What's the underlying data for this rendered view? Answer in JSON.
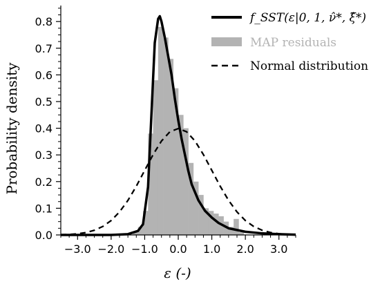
{
  "chart_data": {
    "type": "histogram+line",
    "xlabel": "ε (-)",
    "ylabel": "Probability density",
    "xlim": [
      -3.5,
      3.5
    ],
    "ylim": [
      0,
      0.86
    ],
    "x_ticks": [
      -3.0,
      -2.0,
      -1.0,
      0.0,
      1.0,
      2.0,
      3.0
    ],
    "y_ticks": [
      0.0,
      0.1,
      0.2,
      0.3,
      0.4,
      0.5,
      0.6,
      0.7,
      0.8
    ],
    "x_tick_labels": [
      "−3.0",
      "−2.0",
      "−1.0",
      "0.0",
      "1.0",
      "2.0",
      "3.0"
    ],
    "y_tick_labels": [
      "0.0",
      "0.1",
      "0.2",
      "0.3",
      "0.4",
      "0.5",
      "0.6",
      "0.7",
      "0.8"
    ],
    "legend": {
      "placement": "top-right",
      "entries": [
        {
          "label": "f_SST(ε|0, 1, ν̂*, ξ̂*)",
          "style": "solid"
        },
        {
          "label": "MAP residuals",
          "style": "patch"
        },
        {
          "label": "Normal distribution",
          "style": "dashed"
        }
      ]
    },
    "histogram": {
      "name": "MAP residuals",
      "color": "#b3b3b3",
      "bins": [
        {
          "x0": -1.35,
          "x1": -1.2,
          "value": 0.01
        },
        {
          "x0": -1.2,
          "x1": -1.05,
          "value": 0.03
        },
        {
          "x0": -1.05,
          "x1": -0.9,
          "value": 0.09
        },
        {
          "x0": -0.9,
          "x1": -0.75,
          "value": 0.38
        },
        {
          "x0": -0.75,
          "x1": -0.6,
          "value": 0.58
        },
        {
          "x0": -0.6,
          "x1": -0.45,
          "value": 0.78
        },
        {
          "x0": -0.45,
          "x1": -0.3,
          "value": 0.74
        },
        {
          "x0": -0.3,
          "x1": -0.15,
          "value": 0.66
        },
        {
          "x0": -0.15,
          "x1": 0.0,
          "value": 0.55
        },
        {
          "x0": 0.0,
          "x1": 0.15,
          "value": 0.45
        },
        {
          "x0": 0.15,
          "x1": 0.3,
          "value": 0.4
        },
        {
          "x0": 0.3,
          "x1": 0.45,
          "value": 0.27
        },
        {
          "x0": 0.45,
          "x1": 0.6,
          "value": 0.2
        },
        {
          "x0": 0.6,
          "x1": 0.75,
          "value": 0.15
        },
        {
          "x0": 0.75,
          "x1": 0.9,
          "value": 0.1
        },
        {
          "x0": 0.9,
          "x1": 1.05,
          "value": 0.09
        },
        {
          "x0": 1.05,
          "x1": 1.2,
          "value": 0.08
        },
        {
          "x0": 1.2,
          "x1": 1.35,
          "value": 0.07
        },
        {
          "x0": 1.35,
          "x1": 1.5,
          "value": 0.05
        },
        {
          "x0": 1.5,
          "x1": 1.65,
          "value": 0.03
        },
        {
          "x0": 1.65,
          "x1": 1.8,
          "value": 0.06
        },
        {
          "x0": 1.8,
          "x1": 1.95,
          "value": 0.01
        }
      ]
    },
    "series": [
      {
        "name": "f_SST",
        "style": "solid",
        "color": "#000000",
        "x": [
          -3.5,
          -2.0,
          -1.5,
          -1.2,
          -1.05,
          -0.9,
          -0.8,
          -0.7,
          -0.6,
          -0.55,
          -0.5,
          -0.45,
          -0.4,
          -0.3,
          -0.2,
          -0.1,
          0.0,
          0.1,
          0.2,
          0.3,
          0.4,
          0.6,
          0.8,
          1.0,
          1.2,
          1.5,
          2.0,
          2.5,
          3.0,
          3.5
        ],
        "y": [
          0.0,
          0.0,
          0.003,
          0.015,
          0.04,
          0.18,
          0.45,
          0.72,
          0.81,
          0.82,
          0.8,
          0.77,
          0.74,
          0.67,
          0.6,
          0.51,
          0.43,
          0.36,
          0.3,
          0.24,
          0.19,
          0.13,
          0.09,
          0.065,
          0.045,
          0.025,
          0.012,
          0.006,
          0.003,
          0.001
        ]
      },
      {
        "name": "Normal distribution",
        "style": "dashed",
        "color": "#000000",
        "x": [
          -3.5,
          -3.25,
          -3.0,
          -2.75,
          -2.5,
          -2.25,
          -2.0,
          -1.75,
          -1.5,
          -1.25,
          -1.0,
          -0.75,
          -0.5,
          -0.25,
          0.0,
          0.25,
          0.5,
          0.75,
          1.0,
          1.25,
          1.5,
          1.75,
          2.0,
          2.25,
          2.5,
          2.75,
          3.0,
          3.25,
          3.5
        ],
        "y": [
          0.0009,
          0.002,
          0.0044,
          0.0091,
          0.0175,
          0.0317,
          0.054,
          0.0863,
          0.1295,
          0.1826,
          0.242,
          0.3011,
          0.3521,
          0.3867,
          0.3989,
          0.3867,
          0.3521,
          0.3011,
          0.242,
          0.1826,
          0.1295,
          0.0863,
          0.054,
          0.0317,
          0.0175,
          0.0091,
          0.0044,
          0.002,
          0.0009
        ]
      }
    ]
  }
}
